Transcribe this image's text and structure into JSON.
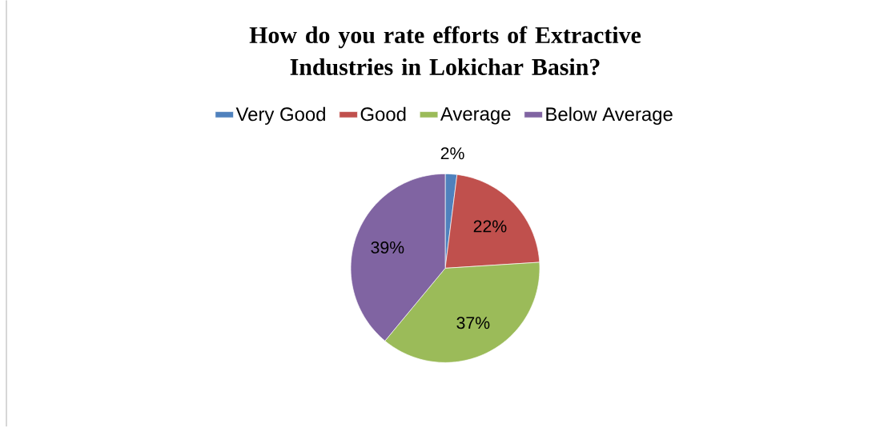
{
  "chart_data": {
    "type": "pie",
    "title": "How do you rate efforts of Extractive Industries in Lokichar Basin?",
    "categories": [
      "Very Good",
      "Good",
      "Average",
      "Below Average"
    ],
    "values": [
      2,
      22,
      37,
      39
    ],
    "colors": [
      "#4f81bd",
      "#c0504d",
      "#9bbb59",
      "#8064a2"
    ],
    "value_labels": [
      "2%",
      "22%",
      "37%",
      "39%"
    ],
    "legend": "top"
  }
}
